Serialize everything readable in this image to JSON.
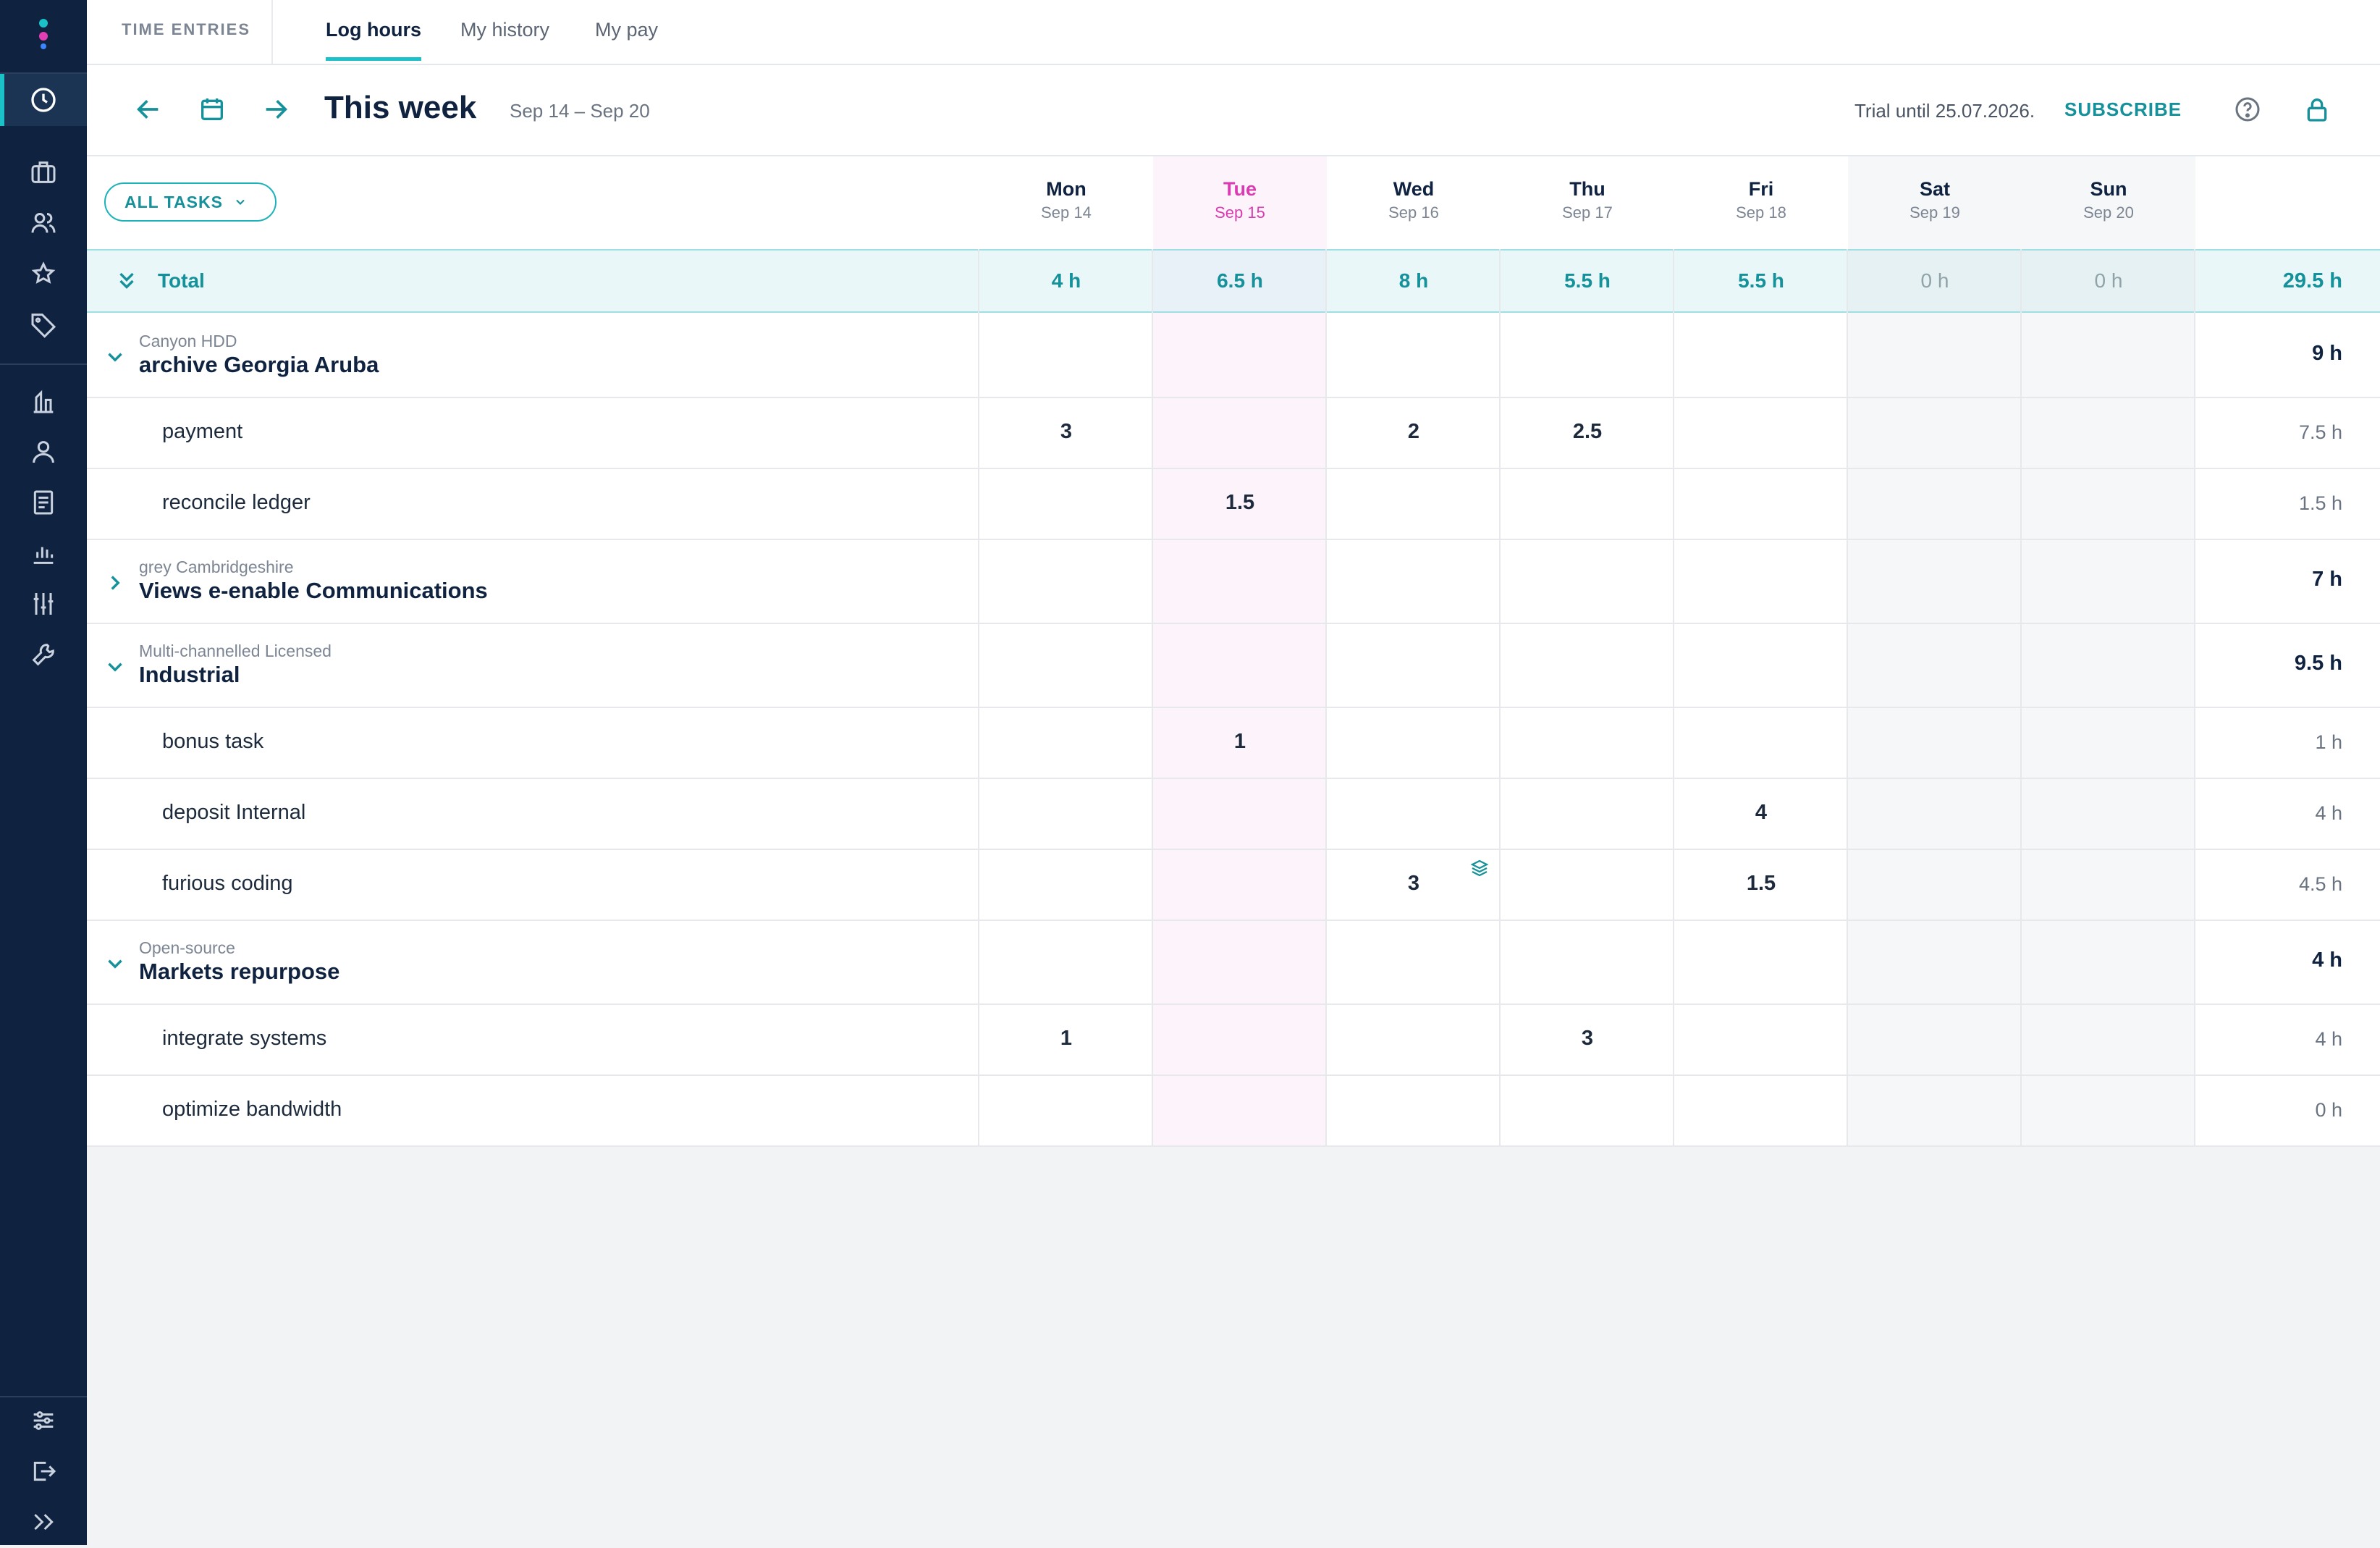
{
  "sidebar": {
    "top_items": [
      "time-entries",
      "projects",
      "team",
      "favorites",
      "tags",
      "reports-building",
      "users",
      "invoices",
      "analytics",
      "settings-sliders",
      "tools"
    ],
    "bottom_items": [
      "preferences",
      "logout",
      "expand"
    ]
  },
  "topbar": {
    "section_label": "TIME ENTRIES",
    "tabs": [
      {
        "label": "Log hours",
        "active": true
      },
      {
        "label": "My history",
        "active": false
      },
      {
        "label": "My pay",
        "active": false
      }
    ]
  },
  "week": {
    "title": "This week",
    "range": "Sep 14 – Sep 20",
    "trial_text": "Trial until 25.07.2026.",
    "subscribe_label": "SUBSCRIBE"
  },
  "filter": {
    "label": "ALL TASKS"
  },
  "days": [
    {
      "name": "Mon",
      "date": "Sep 14",
      "total": "4 h"
    },
    {
      "name": "Tue",
      "date": "Sep 15",
      "total": "6.5 h",
      "today": true
    },
    {
      "name": "Wed",
      "date": "Sep 16",
      "total": "8 h"
    },
    {
      "name": "Thu",
      "date": "Sep 17",
      "total": "5.5 h"
    },
    {
      "name": "Fri",
      "date": "Sep 18",
      "total": "5.5 h"
    },
    {
      "name": "Sat",
      "date": "Sep 19",
      "total": "0 h",
      "weekend": true
    },
    {
      "name": "Sun",
      "date": "Sep 20",
      "total": "0 h",
      "weekend": true
    }
  ],
  "total": {
    "label": "Total",
    "sum": "29.5 h"
  },
  "projects": [
    {
      "client": "Canyon HDD",
      "name": "archive Georgia Aruba",
      "total": "9 h",
      "expanded": true,
      "tasks": [
        {
          "name": "payment",
          "hours": [
            "3",
            "",
            "2",
            "2.5",
            "",
            "",
            ""
          ],
          "total": "7.5 h"
        },
        {
          "name": "reconcile ledger",
          "hours": [
            "",
            "1.5",
            "",
            "",
            "",
            "",
            ""
          ],
          "total": "1.5 h"
        }
      ]
    },
    {
      "client": "grey Cambridgeshire",
      "name": "Views e-enable Communications",
      "total": "7 h",
      "expanded": false,
      "tasks": []
    },
    {
      "client": "Multi-channelled Licensed",
      "name": "Industrial",
      "total": "9.5 h",
      "expanded": true,
      "tasks": [
        {
          "name": "bonus task",
          "hours": [
            "",
            "1",
            "",
            "",
            "",
            "",
            ""
          ],
          "total": "1 h"
        },
        {
          "name": "deposit Internal",
          "hours": [
            "",
            "",
            "",
            "",
            "4",
            "",
            ""
          ],
          "total": "4 h"
        },
        {
          "name": "furious coding",
          "hours": [
            "",
            "",
            "3",
            "",
            "1.5",
            "",
            ""
          ],
          "total": "4.5 h"
        }
      ]
    },
    {
      "client": "Open-source",
      "name": "Markets repurpose",
      "total": "4 h",
      "expanded": true,
      "tasks": [
        {
          "name": "integrate systems",
          "hours": [
            "1",
            "",
            "",
            "3",
            "",
            "",
            ""
          ],
          "total": "4 h"
        },
        {
          "name": "optimize bandwidth",
          "hours": [
            "",
            "",
            "",
            "",
            "",
            "",
            ""
          ],
          "total": "0 h"
        }
      ]
    }
  ],
  "colors": {
    "accent": "#1bc1c8",
    "accent_dark": "#14919a",
    "today": "#d93bb0",
    "sidebar": "#0f2240"
  }
}
